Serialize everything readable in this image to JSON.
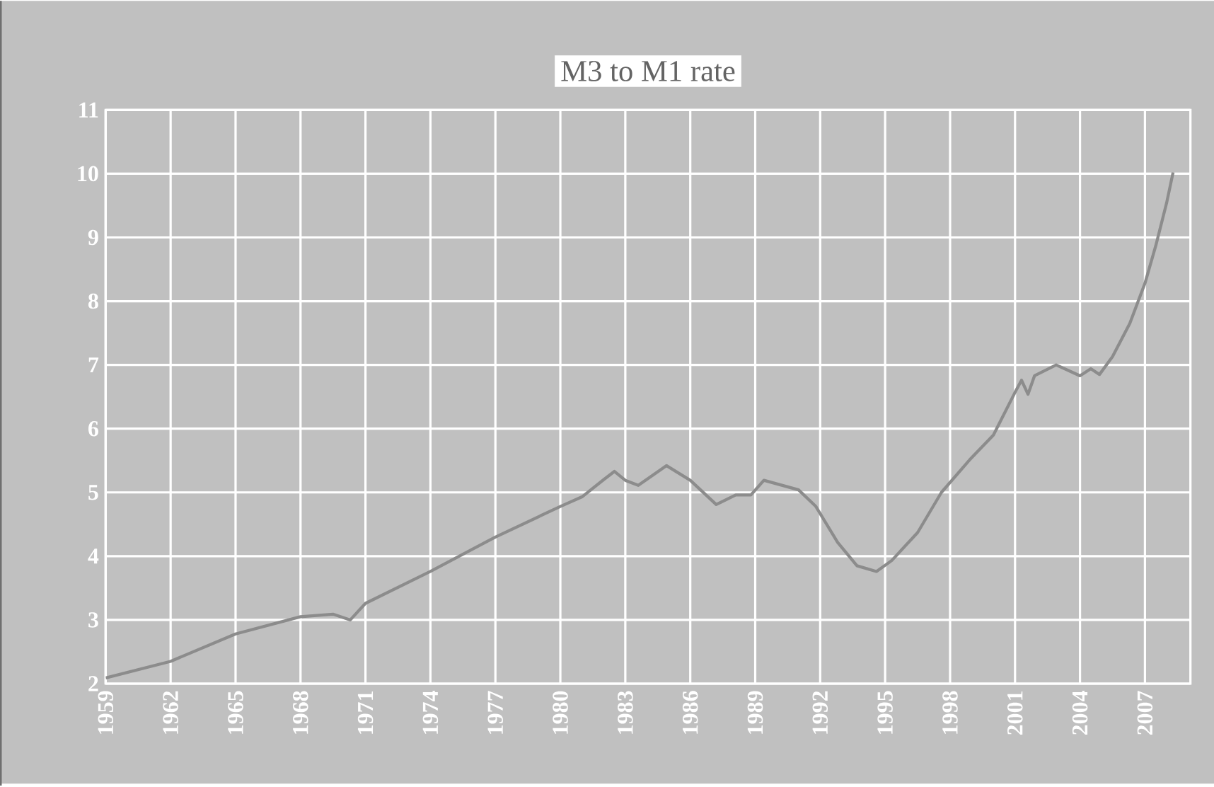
{
  "chart_data": {
    "type": "line",
    "title": "M3 to M1 rate",
    "x": [
      1959,
      1962,
      1965,
      1968,
      1969.5,
      1970.3,
      1971,
      1974,
      1977,
      1980,
      1981,
      1982,
      1982.5,
      1983,
      1983.6,
      1984.9,
      1986,
      1987.2,
      1988.1,
      1988.8,
      1989.4,
      1991,
      1991.8,
      1992.8,
      1993.7,
      1994.6,
      1995.3,
      1996.5,
      1997.6,
      1998.9,
      2000,
      2001,
      2001.3,
      2001.6,
      2001.9,
      2002.9,
      2004,
      2004.5,
      2004.9,
      2005.5,
      2006.3,
      2007,
      2007.5,
      2008,
      2008.3
    ],
    "series": [
      {
        "color": "#8c8c8c",
        "values": [
          2.09,
          2.35,
          2.78,
          3.05,
          3.09,
          3.0,
          3.26,
          3.76,
          4.3,
          4.78,
          4.93,
          5.2,
          5.33,
          5.19,
          5.11,
          5.42,
          5.19,
          4.81,
          4.96,
          4.96,
          5.19,
          5.04,
          4.78,
          4.22,
          3.85,
          3.76,
          3.93,
          4.37,
          5.0,
          5.51,
          5.9,
          6.57,
          6.76,
          6.54,
          6.83,
          7.0,
          6.83,
          6.94,
          6.85,
          7.13,
          7.65,
          8.28,
          8.87,
          9.54,
          10.02
        ]
      }
    ],
    "xlim": [
      1959,
      2009.1
    ],
    "ylim": [
      2,
      11
    ],
    "xticks": [
      1959,
      1962,
      1965,
      1968,
      1971,
      1974,
      1977,
      1980,
      1983,
      1986,
      1989,
      1992,
      1995,
      1998,
      2001,
      2004,
      2007
    ],
    "yticks": [
      2,
      3,
      4,
      5,
      6,
      7,
      8,
      9,
      10,
      11
    ],
    "grid": true,
    "marker": "none",
    "line_style": "solid"
  }
}
